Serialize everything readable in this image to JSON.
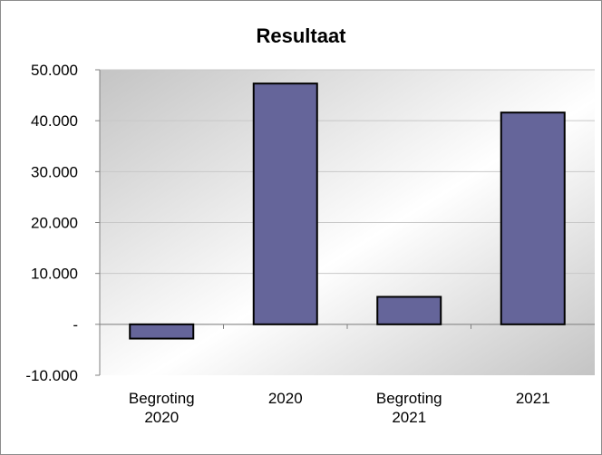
{
  "chart_data": {
    "type": "bar",
    "title": "Resultaat",
    "categories": [
      [
        "Begroting",
        "2020"
      ],
      [
        "2020"
      ],
      [
        "Begroting",
        "2021"
      ],
      [
        "2021"
      ]
    ],
    "values": [
      -2800,
      47300,
      5400,
      41600
    ],
    "ylim": [
      -10000,
      50000
    ],
    "yticks": [
      -10000,
      0,
      10000,
      20000,
      30000,
      40000,
      50000
    ],
    "ytick_labels": [
      "-10.000",
      "-",
      "10.000",
      "20.000",
      "30.000",
      "40.000",
      "50.000"
    ],
    "xlabel": "",
    "ylabel": "",
    "grid": true,
    "legend": "none",
    "colors": {
      "bar_fill": "#65659a",
      "bar_stroke": "#000000",
      "grid": "#c8c8c8",
      "plot_bg_dark": "#c4c4c4",
      "plot_bg_light": "#ffffff"
    }
  }
}
